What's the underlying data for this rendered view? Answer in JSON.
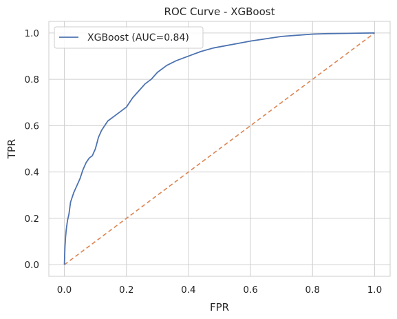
{
  "chart_data": {
    "type": "line",
    "title": "ROC Curve - XGBoost",
    "xlabel": "FPR",
    "ylabel": "TPR",
    "xlim": [
      -0.05,
      1.05
    ],
    "ylim": [
      -0.05,
      1.05
    ],
    "xticks": [
      0.0,
      0.2,
      0.4,
      0.6,
      0.8,
      1.0
    ],
    "xtick_labels": [
      "0.0",
      "0.2",
      "0.4",
      "0.6",
      "0.8",
      "1.0"
    ],
    "yticks": [
      0.0,
      0.2,
      0.4,
      0.6,
      0.8,
      1.0
    ],
    "ytick_labels": [
      "0.0",
      "0.2",
      "0.4",
      "0.6",
      "0.8",
      "1.0"
    ],
    "grid": true,
    "legend_position": "upper-left",
    "series": [
      {
        "name": "XGBoost (AUC=0.84)",
        "color": "#4c72b0",
        "style": "solid",
        "x": [
          0.0,
          0.002,
          0.004,
          0.006,
          0.008,
          0.01,
          0.015,
          0.02,
          0.025,
          0.03,
          0.04,
          0.05,
          0.06,
          0.07,
          0.08,
          0.09,
          0.1,
          0.11,
          0.12,
          0.13,
          0.14,
          0.15,
          0.16,
          0.18,
          0.2,
          0.22,
          0.24,
          0.26,
          0.28,
          0.3,
          0.33,
          0.36,
          0.4,
          0.44,
          0.48,
          0.52,
          0.56,
          0.6,
          0.65,
          0.7,
          0.75,
          0.8,
          0.85,
          0.9,
          0.95,
          1.0
        ],
        "y": [
          0.0,
          0.08,
          0.12,
          0.15,
          0.17,
          0.19,
          0.22,
          0.27,
          0.29,
          0.31,
          0.34,
          0.37,
          0.41,
          0.44,
          0.46,
          0.47,
          0.5,
          0.55,
          0.58,
          0.6,
          0.62,
          0.63,
          0.64,
          0.66,
          0.68,
          0.72,
          0.75,
          0.78,
          0.8,
          0.83,
          0.86,
          0.88,
          0.9,
          0.92,
          0.935,
          0.945,
          0.955,
          0.965,
          0.975,
          0.985,
          0.99,
          0.995,
          0.997,
          0.998,
          0.999,
          1.0
        ]
      },
      {
        "name": "",
        "color": "#dd8452",
        "style": "dashed",
        "x": [
          0.0,
          1.0
        ],
        "y": [
          0.0,
          1.0
        ]
      }
    ]
  }
}
